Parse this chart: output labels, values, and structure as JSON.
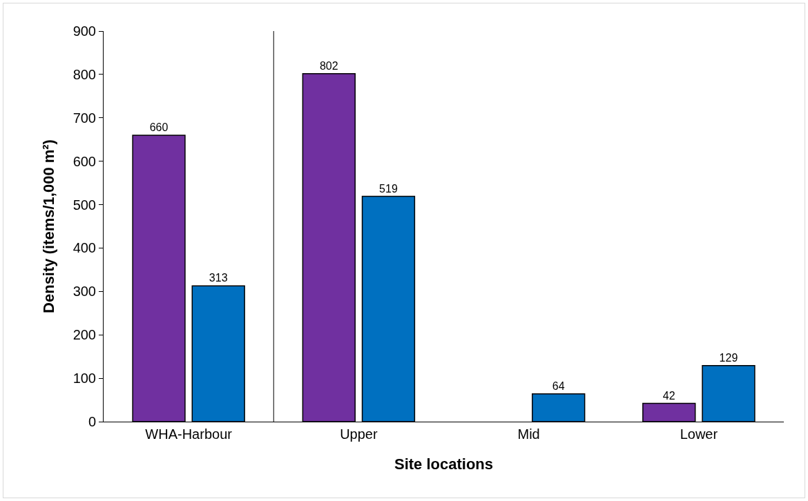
{
  "chart_data": {
    "type": "bar",
    "xlabel": "Site locations",
    "ylabel": "Density (items/1,000 m²)",
    "categories": [
      "WHA-Harbour",
      "Upper",
      "Mid",
      "Lower"
    ],
    "series": [
      {
        "color": "#7030a0",
        "values": [
          660,
          802,
          null,
          42
        ]
      },
      {
        "color": "#0070c0",
        "values": [
          313,
          519,
          64,
          129
        ]
      }
    ],
    "ylim": [
      0,
      900
    ],
    "yticks": [
      0,
      100,
      200,
      300,
      400,
      500,
      600,
      700,
      800,
      900
    ],
    "grid": false,
    "data_labels": true
  }
}
